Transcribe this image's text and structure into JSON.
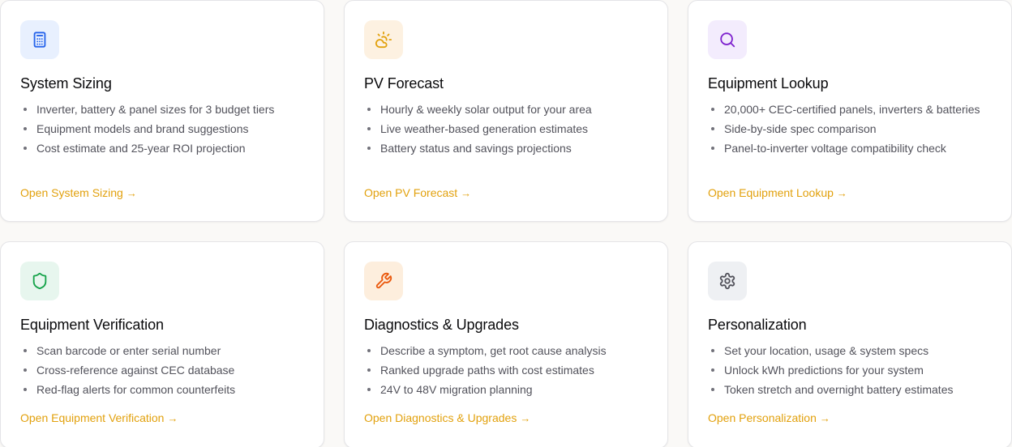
{
  "cards": [
    {
      "title": "System Sizing",
      "icon": "calculator-icon",
      "icon_bg": "#e8f0fe",
      "icon_color": "#2563eb",
      "features": [
        "Inverter, battery & panel sizes for 3 budget tiers",
        "Equipment models and brand suggestions",
        "Cost estimate and 25-year ROI projection"
      ],
      "link": "Open System Sizing"
    },
    {
      "title": "PV Forecast",
      "icon": "sun-cloud-icon",
      "icon_bg": "#fdf1e1",
      "icon_color": "#e2a10d",
      "features": [
        "Hourly & weekly solar output for your area",
        "Live weather-based generation estimates",
        "Battery status and savings projections"
      ],
      "link": "Open PV Forecast"
    },
    {
      "title": "Equipment Lookup",
      "icon": "search-icon",
      "icon_bg": "#f3ecfd",
      "icon_color": "#7e22ce",
      "features": [
        "20,000+ CEC-certified panels, inverters & batteries",
        "Side-by-side spec comparison",
        "Panel-to-inverter voltage compatibility check"
      ],
      "link": "Open Equipment Lookup"
    },
    {
      "title": "Equipment Verification",
      "icon": "shield-icon",
      "icon_bg": "#e7f6ee",
      "icon_color": "#16a34a",
      "features": [
        "Scan barcode or enter serial number",
        "Cross-reference against CEC database",
        "Red-flag alerts for common counterfeits"
      ],
      "link": "Open Equipment Verification"
    },
    {
      "title": "Diagnostics & Upgrades",
      "icon": "wrench-icon",
      "icon_bg": "#fdeedd",
      "icon_color": "#ea580c",
      "features": [
        "Describe a symptom, get root cause analysis",
        "Ranked upgrade paths with cost estimates",
        "24V to 48V migration planning"
      ],
      "link": "Open Diagnostics & Upgrades"
    },
    {
      "title": "Personalization",
      "icon": "gear-icon",
      "icon_bg": "#eef0f3",
      "icon_color": "#52525b",
      "features": [
        "Set your location, usage & system specs",
        "Unlock kWh predictions for your system",
        "Token stretch and overnight battery estimates"
      ],
      "link": "Open Personalization"
    }
  ],
  "link_arrow": "→",
  "accent": "#e2a10d"
}
